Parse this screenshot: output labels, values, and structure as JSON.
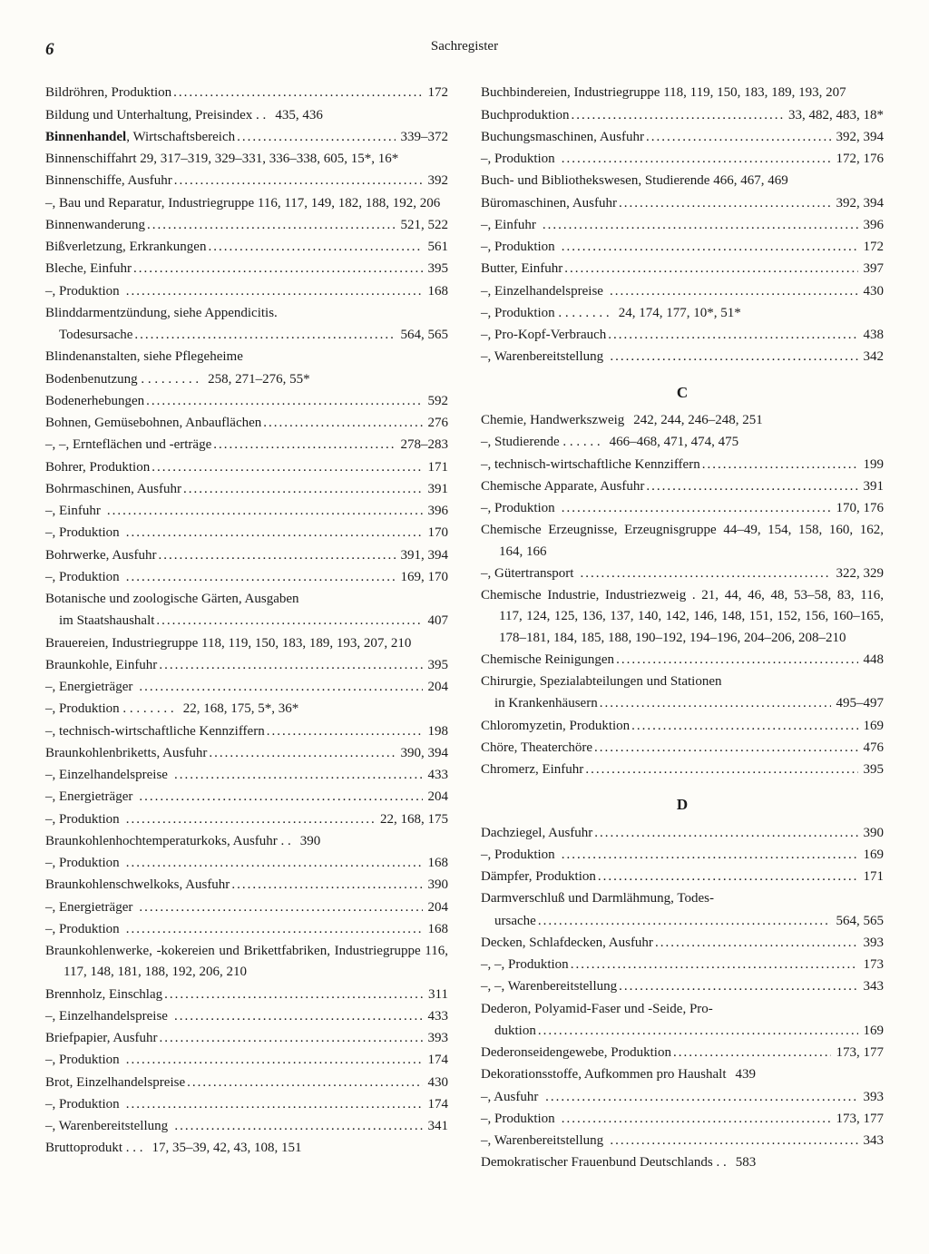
{
  "page_number": "6",
  "page_title": "Sachregister",
  "left_column": [
    {
      "term": "Bildröhren, Produktion",
      "pages": "172",
      "dots": true
    },
    {
      "term": "Bildung und Unterhaltung, Preisindex . .",
      "pages": "435, 436"
    },
    {
      "term": "<b class='hw'>Binnenhandel</b>, Wirtschaftsbereich",
      "pages": "339–372",
      "dots": true
    },
    {
      "multiline": "Binnenschiffahrt 29, 317–319, 329–331, 336–338, 605, 15*, 16*"
    },
    {
      "term": "Binnenschiffe, Ausfuhr",
      "pages": "392",
      "dots": true
    },
    {
      "multiline": "–, Bau und Reparatur, Industriegruppe 116, 117, 149, 182, 188, 192, 206"
    },
    {
      "term": "Binnenwanderung",
      "pages": "521, 522",
      "dots": true
    },
    {
      "term": "Bißverletzung, Erkrankungen",
      "pages": "561",
      "dots": true
    },
    {
      "term": "Bleche, Einfuhr",
      "pages": "395",
      "dots": true
    },
    {
      "term": "–, Produktion",
      "pages": "168",
      "dots": true
    },
    {
      "multiline": "Blinddarmentzündung, siehe Appendicitis."
    },
    {
      "term": "    Todesursache",
      "pages": "564, 565",
      "dots": true
    },
    {
      "multiline": "Blindenanstalten, siehe Pflegeheime"
    },
    {
      "term": "Bodenbenutzung . . . . . . . . .",
      "pages": "258, 271–276, 55*"
    },
    {
      "term": "Bodenerhebungen",
      "pages": "592",
      "dots": true
    },
    {
      "term": "Bohnen, Gemüsebohnen, Anbauflächen",
      "pages": "276",
      "dots": true
    },
    {
      "term": "–, –, Ernteflächen und -erträge",
      "pages": "278–283",
      "dots": true
    },
    {
      "term": "Bohrer, Produktion",
      "pages": "171",
      "dots": true
    },
    {
      "term": "Bohrmaschinen, Ausfuhr",
      "pages": "391",
      "dots": true
    },
    {
      "term": "–, Einfuhr",
      "pages": "396",
      "dots": true
    },
    {
      "term": "–, Produktion",
      "pages": "170",
      "dots": true
    },
    {
      "term": "Bohrwerke, Ausfuhr",
      "pages": "391, 394",
      "dots": true
    },
    {
      "term": "–, Produktion",
      "pages": "169, 170",
      "dots": true
    },
    {
      "multiline": "Botanische und zoologische Gärten, Ausgaben"
    },
    {
      "term": "    im Staatshaushalt",
      "pages": "407",
      "dots": true
    },
    {
      "multiline": "Brauereien, Industriegruppe 118, 119, 150, 183, 189, 193, 207, 210"
    },
    {
      "term": "Braunkohle, Einfuhr",
      "pages": "395",
      "dots": true
    },
    {
      "term": "–, Energieträger",
      "pages": "204",
      "dots": true
    },
    {
      "term": "–, Produktion . . . . . . . .",
      "pages": "22, 168, 175, 5*, 36*"
    },
    {
      "term": "–, technisch-wirtschaftliche Kennziffern",
      "pages": "198",
      "dots": true
    },
    {
      "term": "Braunkohlenbriketts, Ausfuhr",
      "pages": "390, 394",
      "dots": true
    },
    {
      "term": "–, Einzelhandelspreise",
      "pages": "433",
      "dots": true
    },
    {
      "term": "–, Energieträger",
      "pages": "204",
      "dots": true
    },
    {
      "term": "–, Produktion",
      "pages": "22, 168, 175",
      "dots": true
    },
    {
      "term": "Braunkohlenhochtemperaturkoks, Ausfuhr . .",
      "pages": "390"
    },
    {
      "term": "–, Produktion",
      "pages": "168",
      "dots": true
    },
    {
      "term": "Braunkohlenschwelkoks, Ausfuhr",
      "pages": "390",
      "dots": true
    },
    {
      "term": "–, Energieträger",
      "pages": "204",
      "dots": true
    },
    {
      "term": "–, Produktion",
      "pages": "168",
      "dots": true
    },
    {
      "multiline": "Braunkohlenwerke, -kokereien und Brikett­fabriken, Industriegruppe 116, 117, 148, 181, 188, 192, 206, 210"
    },
    {
      "term": "Brennholz, Einschlag",
      "pages": "311",
      "dots": true
    },
    {
      "term": "–, Einzelhandelspreise",
      "pages": "433",
      "dots": true
    },
    {
      "term": "Briefpapier, Ausfuhr",
      "pages": "393",
      "dots": true
    },
    {
      "term": "–, Produktion",
      "pages": "174",
      "dots": true
    },
    {
      "term": "Brot, Einzelhandelspreise",
      "pages": "430",
      "dots": true
    },
    {
      "term": "–, Produktion",
      "pages": "174",
      "dots": true
    },
    {
      "term": "–, Warenbereitstellung",
      "pages": "341",
      "dots": true
    },
    {
      "term": "Bruttoprodukt . . .",
      "pages": "17, 35–39, 42, 43, 108, 151"
    }
  ],
  "right_column": [
    {
      "multiline": "Buchbindereien, Industriegruppe 118, 119, 150, 183, 189, 193, 207"
    },
    {
      "term": "Buchproduktion",
      "pages": "33, 482, 483, 18*",
      "dots": true
    },
    {
      "term": "Buchungsmaschinen, Ausfuhr",
      "pages": "392, 394",
      "dots": true
    },
    {
      "term": "–, Produktion",
      "pages": "172, 176",
      "dots": true
    },
    {
      "multiline": "Buch- und Bibliothekswesen, Studierende 466, 467, 469"
    },
    {
      "term": "Büromaschinen, Ausfuhr",
      "pages": "392, 394",
      "dots": true
    },
    {
      "term": "–, Einfuhr",
      "pages": "396",
      "dots": true
    },
    {
      "term": "–, Produktion",
      "pages": "172",
      "dots": true
    },
    {
      "term": "Butter, Einfuhr",
      "pages": "397",
      "dots": true
    },
    {
      "term": "–, Einzelhandelspreise",
      "pages": "430",
      "dots": true
    },
    {
      "term": "–, Produktion . . . . . . . .",
      "pages": "24, 174, 177, 10*, 51*"
    },
    {
      "term": "–, Pro-Kopf-Verbrauch",
      "pages": "438",
      "dots": true
    },
    {
      "term": "–, Warenbereitstellung",
      "pages": "342",
      "dots": true
    },
    {
      "section": "C"
    },
    {
      "term": "Chemie, Handwerkszweig",
      "pages": "242, 244, 246–248, 251"
    },
    {
      "term": "–, Studierende . . . . . .",
      "pages": "466–468, 471, 474, 475"
    },
    {
      "term": "–, technisch-wirtschaftliche Kennziffern",
      "pages": "199",
      "dots": true
    },
    {
      "term": "Chemische Apparate, Ausfuhr",
      "pages": "391",
      "dots": true
    },
    {
      "term": "–, Produktion",
      "pages": "170, 176",
      "dots": true
    },
    {
      "multiline": "Chemische Erzeugnisse, Erzeugnisgruppe 44–49, 154, 158, 160, 162, 164, 166"
    },
    {
      "term": "–, Gütertransport",
      "pages": "322, 329",
      "dots": true
    },
    {
      "multiline": "Chemische Industrie, Industriezweig . 21, 44, 46, 48, 53–58, 83, 116, 117, 124, 125, 136, 137, 140, 142, 146, 148, 151, 152, 156, 160–165, 178–181, 184, 185, 188, 190–192, 194–196, 204–206, 208–210"
    },
    {
      "term": "Chemische Reinigungen",
      "pages": "448",
      "dots": true
    },
    {
      "multiline": "Chirurgie, Spezialabteilungen und Stationen"
    },
    {
      "term": "    in Krankenhäusern",
      "pages": "495–497",
      "dots": true
    },
    {
      "term": "Chloromyzetin, Produktion",
      "pages": "169",
      "dots": true
    },
    {
      "term": "Chöre, Theaterchöre",
      "pages": "476",
      "dots": true
    },
    {
      "term": "Chromerz, Einfuhr",
      "pages": "395",
      "dots": true
    },
    {
      "section": "D"
    },
    {
      "term": "Dachziegel, Ausfuhr",
      "pages": "390",
      "dots": true
    },
    {
      "term": "–, Produktion",
      "pages": "169",
      "dots": true
    },
    {
      "term": "Dämpfer, Produktion",
      "pages": "171",
      "dots": true
    },
    {
      "multiline": "Darmverschluß und Darmlähmung, Todes-"
    },
    {
      "term": "    ursache",
      "pages": "564, 565",
      "dots": true
    },
    {
      "term": "Decken, Schlafdecken, Ausfuhr",
      "pages": "393",
      "dots": true
    },
    {
      "term": "–, –, Produktion",
      "pages": "173",
      "dots": true
    },
    {
      "term": "–, –, Warenbereitstellung",
      "pages": "343",
      "dots": true
    },
    {
      "multiline": "Dederon, Polyamid-Faser und -Seide, Pro-"
    },
    {
      "term": "    duktion",
      "pages": "169",
      "dots": true
    },
    {
      "term": "Dederonseidengewebe, Produktion",
      "pages": "173, 177",
      "dots": true
    },
    {
      "term": "Dekorationsstoffe, Aufkommen pro Haushalt",
      "pages": "439"
    },
    {
      "term": "–, Ausfuhr",
      "pages": "393",
      "dots": true
    },
    {
      "term": "–, Produktion",
      "pages": "173, 177",
      "dots": true
    },
    {
      "term": "–, Warenbereitstellung",
      "pages": "343",
      "dots": true
    },
    {
      "term": "Demokratischer Frauenbund Deutschlands . .",
      "pages": "583"
    }
  ]
}
